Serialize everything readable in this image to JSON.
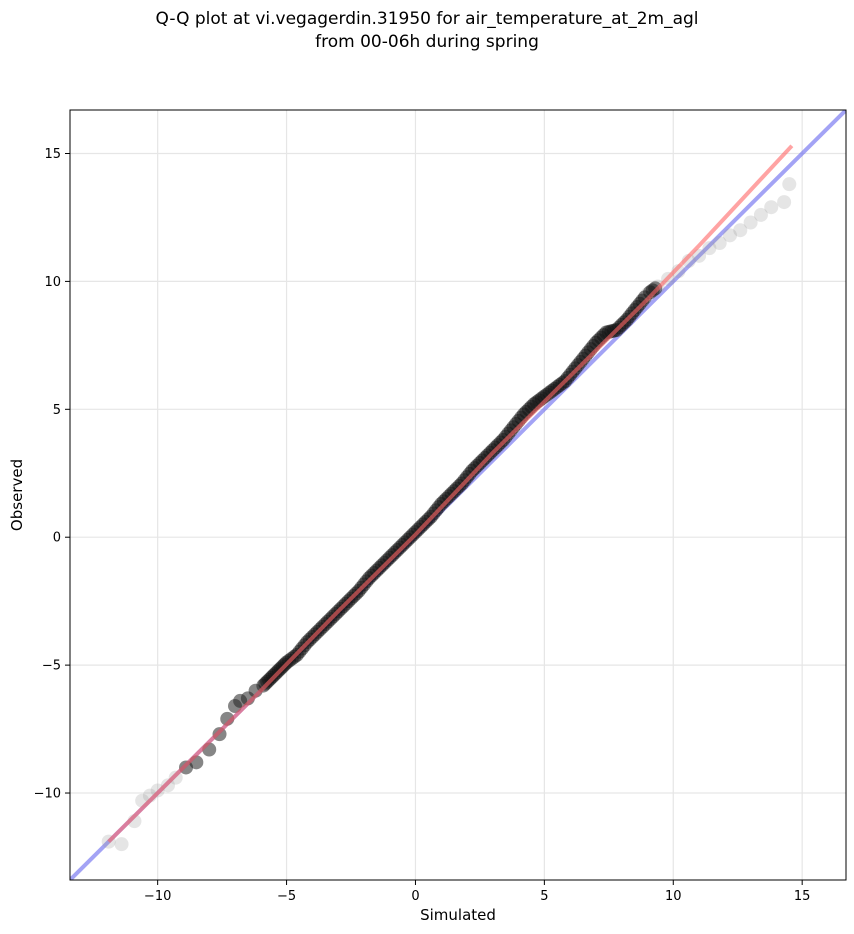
{
  "chart_data": {
    "type": "scatter",
    "title": "Q-Q plot at vi.vegagerdin.31950 for air_temperature_at_2m_agl",
    "subtitle": "from 00-06h during spring",
    "xlabel": "Simulated",
    "ylabel": "Observed",
    "xlim": [
      -13.4,
      16.7
    ],
    "ylim": [
      -13.4,
      16.7
    ],
    "xticks": [
      -10,
      -5,
      0,
      5,
      10,
      15
    ],
    "yticks": [
      -10,
      -5,
      0,
      5,
      10,
      15
    ],
    "xtick_labels": [
      "−10",
      "−5",
      "0",
      "5",
      "10",
      "15"
    ],
    "ytick_labels": [
      "−10",
      "−5",
      "0",
      "5",
      "10",
      "15"
    ],
    "grid": true,
    "series": [
      {
        "role": "quantile points",
        "color": "#555555",
        "x": [
          -11.9,
          -11.4,
          -10.9,
          -10.6,
          -10.3,
          -10.0,
          -9.6,
          -9.3,
          -8.9,
          -8.5,
          -8.0,
          -7.6,
          -7.3,
          -7.0,
          -6.8,
          -6.5,
          -6.2,
          -5.9,
          -5.6,
          -5.3,
          -5.0,
          -4.6,
          -4.2,
          -3.8,
          -3.4,
          -3.0,
          -2.6,
          -2.2,
          -1.8,
          -1.4,
          -1.0,
          -0.6,
          -0.2,
          0.2,
          0.6,
          1.0,
          1.4,
          1.8,
          2.2,
          2.6,
          3.0,
          3.4,
          3.8,
          4.2,
          4.6,
          5.0,
          5.4,
          5.8,
          6.2,
          6.6,
          7.0,
          7.4,
          7.8,
          8.2,
          8.6,
          9.0,
          9.4,
          9.8,
          10.2,
          10.6,
          11.0,
          11.4,
          11.8,
          12.2,
          12.6,
          13.0,
          13.4,
          13.8,
          14.3,
          14.5
        ],
        "y": [
          -11.9,
          -12.0,
          -11.1,
          -10.3,
          -10.1,
          -9.9,
          -9.7,
          -9.4,
          -9.0,
          -8.8,
          -8.3,
          -7.7,
          -7.1,
          -6.6,
          -6.4,
          -6.3,
          -6.0,
          -5.8,
          -5.5,
          -5.2,
          -4.9,
          -4.6,
          -4.1,
          -3.7,
          -3.3,
          -2.9,
          -2.5,
          -2.1,
          -1.6,
          -1.2,
          -0.8,
          -0.4,
          0.0,
          0.4,
          0.8,
          1.3,
          1.7,
          2.1,
          2.6,
          3.0,
          3.4,
          3.8,
          4.3,
          4.8,
          5.2,
          5.5,
          5.8,
          6.1,
          6.6,
          7.1,
          7.6,
          8.0,
          8.1,
          8.5,
          9.0,
          9.5,
          9.8,
          10.1,
          10.4,
          10.8,
          11.0,
          11.3,
          11.5,
          11.8,
          12.0,
          12.3,
          12.6,
          12.9,
          13.1,
          13.8
        ]
      },
      {
        "role": "fitted line",
        "color": "#ff6666",
        "x": [
          -11.9,
          -9.0,
          -6.0,
          -3.0,
          0.0,
          3.0,
          6.0,
          9.0,
          11.0,
          14.6
        ],
        "y": [
          -11.9,
          -9.0,
          -6.0,
          -2.9,
          0.1,
          3.3,
          6.3,
          9.3,
          11.4,
          15.3
        ]
      },
      {
        "role": "1:1 reference line",
        "color": "#6666ee",
        "x": [
          -13.4,
          16.7
        ],
        "y": [
          -13.4,
          16.7
        ]
      }
    ]
  }
}
